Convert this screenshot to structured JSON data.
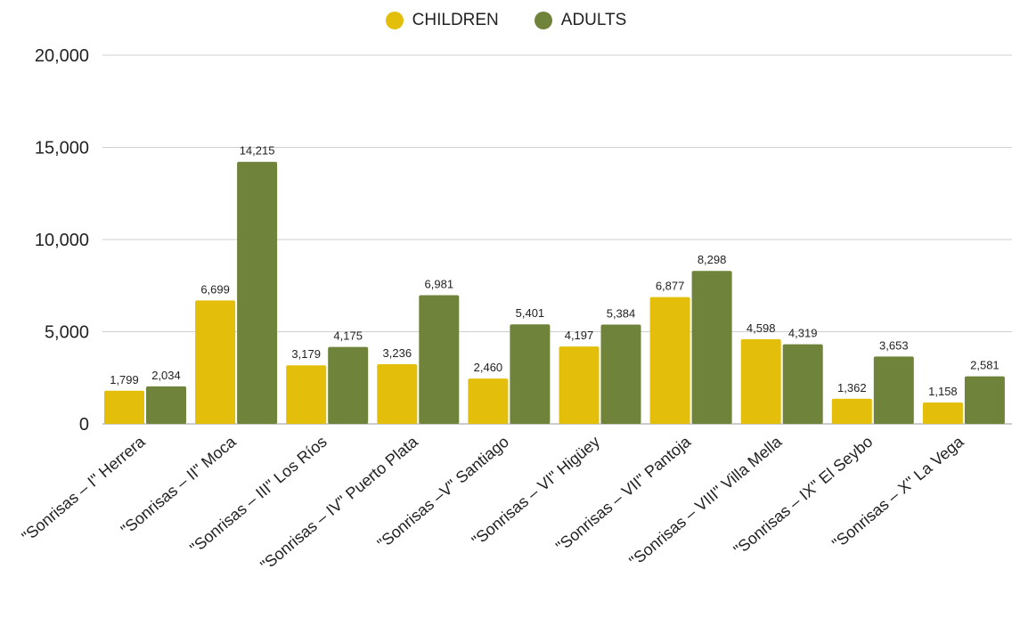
{
  "chart_data": {
    "type": "bar",
    "title": "",
    "xlabel": "",
    "ylabel": "",
    "ylim": [
      0,
      20000
    ],
    "yticks": [
      0,
      5000,
      10000,
      15000,
      20000
    ],
    "ytick_labels": [
      "0",
      "5,000",
      "10,000",
      "15,000",
      "20,000"
    ],
    "grid": true,
    "legend_position": "top-center",
    "categories": [
      "\"Sonrisas – I\" Herrera",
      "\"Sonrisas – II\" Moca",
      "\"Sonrisas – III\" Los Ríos",
      "\"Sonrisas – IV\" Puerto Plata",
      "\"Sonrisas –V\" Santiago",
      "\"Sonrisas – VI\" Higüey",
      "\"Sonrisas – VII\" Pantoja",
      "\"Sonrisas – VIII\" Villa Mella",
      "\"Sonrisas – IX\" El Seybo",
      "\"Sonrisas – X\" La Vega"
    ],
    "series": [
      {
        "name": "CHILDREN",
        "color": "#E3BF0B",
        "values": [
          1799,
          6699,
          3179,
          3236,
          2460,
          4197,
          6877,
          4598,
          1362,
          1158
        ],
        "labels": [
          "1,799",
          "6,699",
          "3,179",
          "3,236",
          "2,460",
          "4,197",
          "6,877",
          "4,598",
          "1,362",
          "1,158"
        ]
      },
      {
        "name": "ADULTS",
        "color": "#6F833A",
        "values": [
          2034,
          14215,
          4175,
          6981,
          5401,
          5384,
          8298,
          4319,
          3653,
          2581
        ],
        "labels": [
          "2,034",
          "14,215",
          "4,175",
          "6,981",
          "5,401",
          "5,384",
          "8,298",
          "4,319",
          "3,653",
          "2,581"
        ]
      }
    ]
  }
}
